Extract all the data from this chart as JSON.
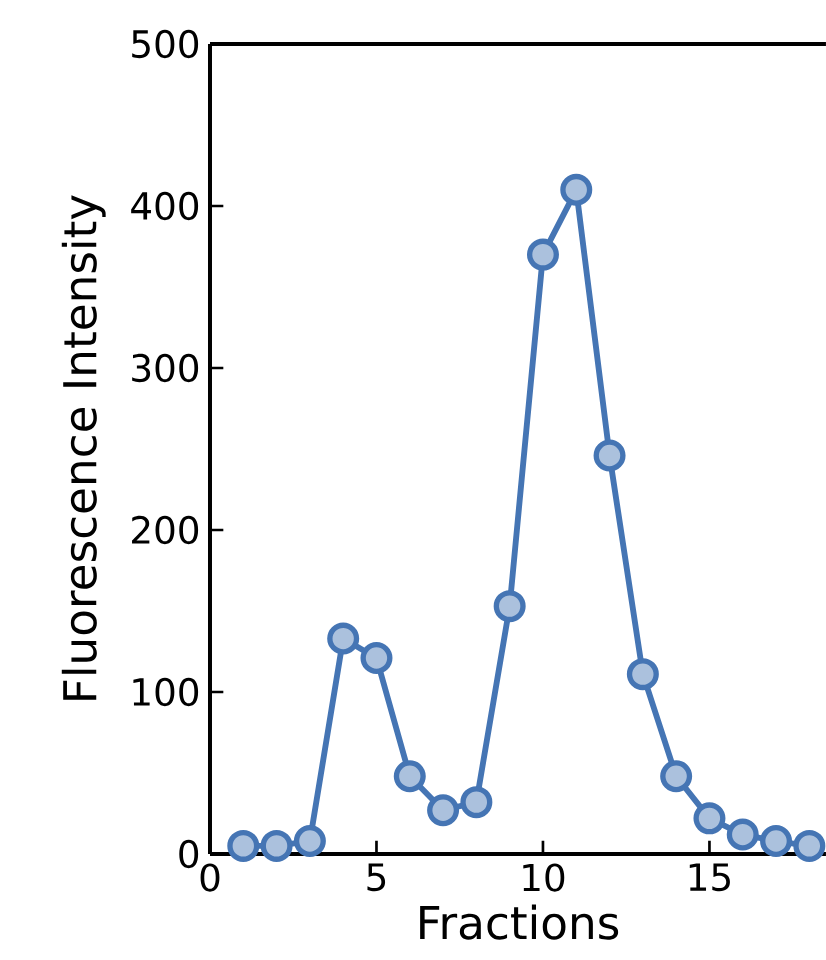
{
  "chart_data": {
    "type": "line",
    "xlabel": "Fractions",
    "ylabel": "Fluorescence Intensity",
    "x": [
      1,
      2,
      3,
      4,
      5,
      6,
      7,
      8,
      9,
      10,
      11,
      12,
      13,
      14,
      15,
      16,
      17,
      18
    ],
    "series": [
      {
        "color": "#4575b4",
        "values": [
          5,
          5,
          8,
          133,
          121,
          48,
          27,
          32,
          153,
          370,
          410,
          246,
          111,
          48,
          22,
          12,
          8,
          5
        ]
      }
    ],
    "xlim": [
      0,
      18.5
    ],
    "ylim": [
      0,
      500
    ],
    "xticks": [
      0,
      5,
      10,
      15
    ],
    "yticks": [
      0,
      100,
      200,
      300,
      400,
      500
    ],
    "marker": "circle",
    "line_style": "solid"
  }
}
